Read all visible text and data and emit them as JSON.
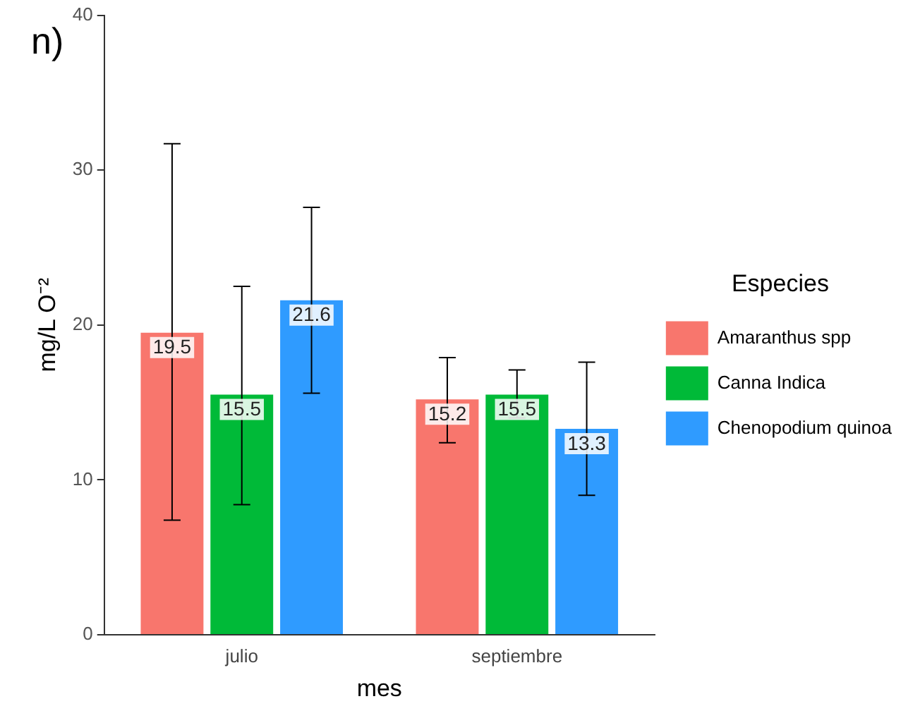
{
  "chart_data": {
    "type": "bar",
    "xlabel": "mes",
    "ylabel": "mg/L O⁻²",
    "legend_title": "Especies",
    "annotations": [
      "n)"
    ],
    "categories": [
      "julio",
      "septiembre"
    ],
    "series": [
      {
        "name": "Amaranthus spp",
        "color": "#f8766d",
        "values": [
          19.5,
          15.2
        ],
        "errors": [
          [
            7.4,
            31.7
          ],
          [
            12.4,
            17.9
          ]
        ]
      },
      {
        "name": "Canna Indica",
        "color": "#00ba38",
        "values": [
          15.5,
          15.5
        ],
        "errors": [
          [
            8.4,
            22.5
          ],
          [
            14.0,
            17.1
          ]
        ]
      },
      {
        "name": "Chenopodium quinoa",
        "color": "#2f9bff",
        "values": [
          21.6,
          13.3
        ],
        "errors": [
          [
            15.6,
            27.6
          ],
          [
            9.0,
            17.6
          ]
        ]
      }
    ],
    "ylim": [
      0,
      40
    ],
    "yticks": [
      0,
      10,
      20,
      30,
      40
    ],
    "grid": false,
    "legend": "right",
    "data_labels": true
  }
}
